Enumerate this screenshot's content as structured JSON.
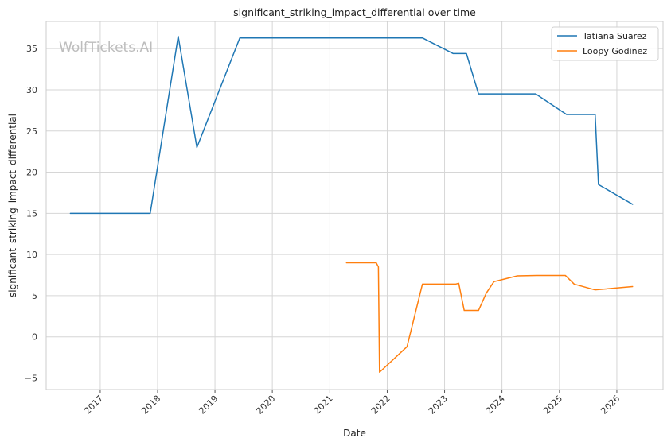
{
  "chart_data": {
    "type": "line",
    "title": "significant_striking_impact_differential over time",
    "xlabel": "Date",
    "ylabel": "significant_striking_impact_differential",
    "watermark": "WolfTickets.AI",
    "xlim": [
      "2016-01-23",
      "2026-10-22"
    ],
    "ylim": [
      -6.4,
      38.3
    ],
    "x_ticks": [
      "2017-01-01",
      "2018-01-01",
      "2019-01-01",
      "2020-01-01",
      "2021-01-01",
      "2022-01-01",
      "2023-01-01",
      "2024-01-01",
      "2025-01-01",
      "2026-01-01"
    ],
    "x_tick_labels": [
      "2017",
      "2018",
      "2019",
      "2020",
      "2021",
      "2022",
      "2023",
      "2024",
      "2025",
      "2026"
    ],
    "y_ticks": [
      -5,
      0,
      5,
      10,
      15,
      20,
      25,
      30,
      35
    ],
    "y_tick_labels": [
      "−5",
      "0",
      "5",
      "10",
      "15",
      "20",
      "25",
      "30",
      "35"
    ],
    "grid": true,
    "legend_position": "top-right",
    "series": [
      {
        "name": "Tatiana Suarez",
        "color": "#1f77b4",
        "points": [
          [
            "2016-06-25",
            15.0
          ],
          [
            "2017-11-15",
            15.0
          ],
          [
            "2018-05-12",
            36.5
          ],
          [
            "2018-09-08",
            23.0
          ],
          [
            "2019-06-08",
            36.3
          ],
          [
            "2022-08-13",
            36.3
          ],
          [
            "2023-02-25",
            34.4
          ],
          [
            "2023-05-20",
            34.4
          ],
          [
            "2023-08-05",
            29.5
          ],
          [
            "2024-08-03",
            29.5
          ],
          [
            "2025-02-15",
            27.0
          ],
          [
            "2025-08-16",
            27.0
          ],
          [
            "2025-09-06",
            18.5
          ],
          [
            "2026-04-11",
            16.1
          ]
        ]
      },
      {
        "name": "Loopy Godinez",
        "color": "#ff7f0e",
        "points": [
          [
            "2021-04-17",
            9.0
          ],
          [
            "2021-10-23",
            9.0
          ],
          [
            "2021-11-06",
            8.5
          ],
          [
            "2021-11-13",
            -4.3
          ],
          [
            "2022-05-07",
            -1.2
          ],
          [
            "2022-08-13",
            6.4
          ],
          [
            "2023-03-11",
            6.4
          ],
          [
            "2023-04-01",
            6.5
          ],
          [
            "2023-05-06",
            3.2
          ],
          [
            "2023-08-05",
            3.2
          ],
          [
            "2023-09-23",
            5.3
          ],
          [
            "2023-11-11",
            6.7
          ],
          [
            "2024-04-06",
            7.4
          ],
          [
            "2024-08-10",
            7.45
          ],
          [
            "2025-02-08",
            7.45
          ],
          [
            "2025-04-05",
            6.4
          ],
          [
            "2025-08-16",
            5.7
          ],
          [
            "2026-04-11",
            6.1
          ]
        ]
      }
    ]
  }
}
